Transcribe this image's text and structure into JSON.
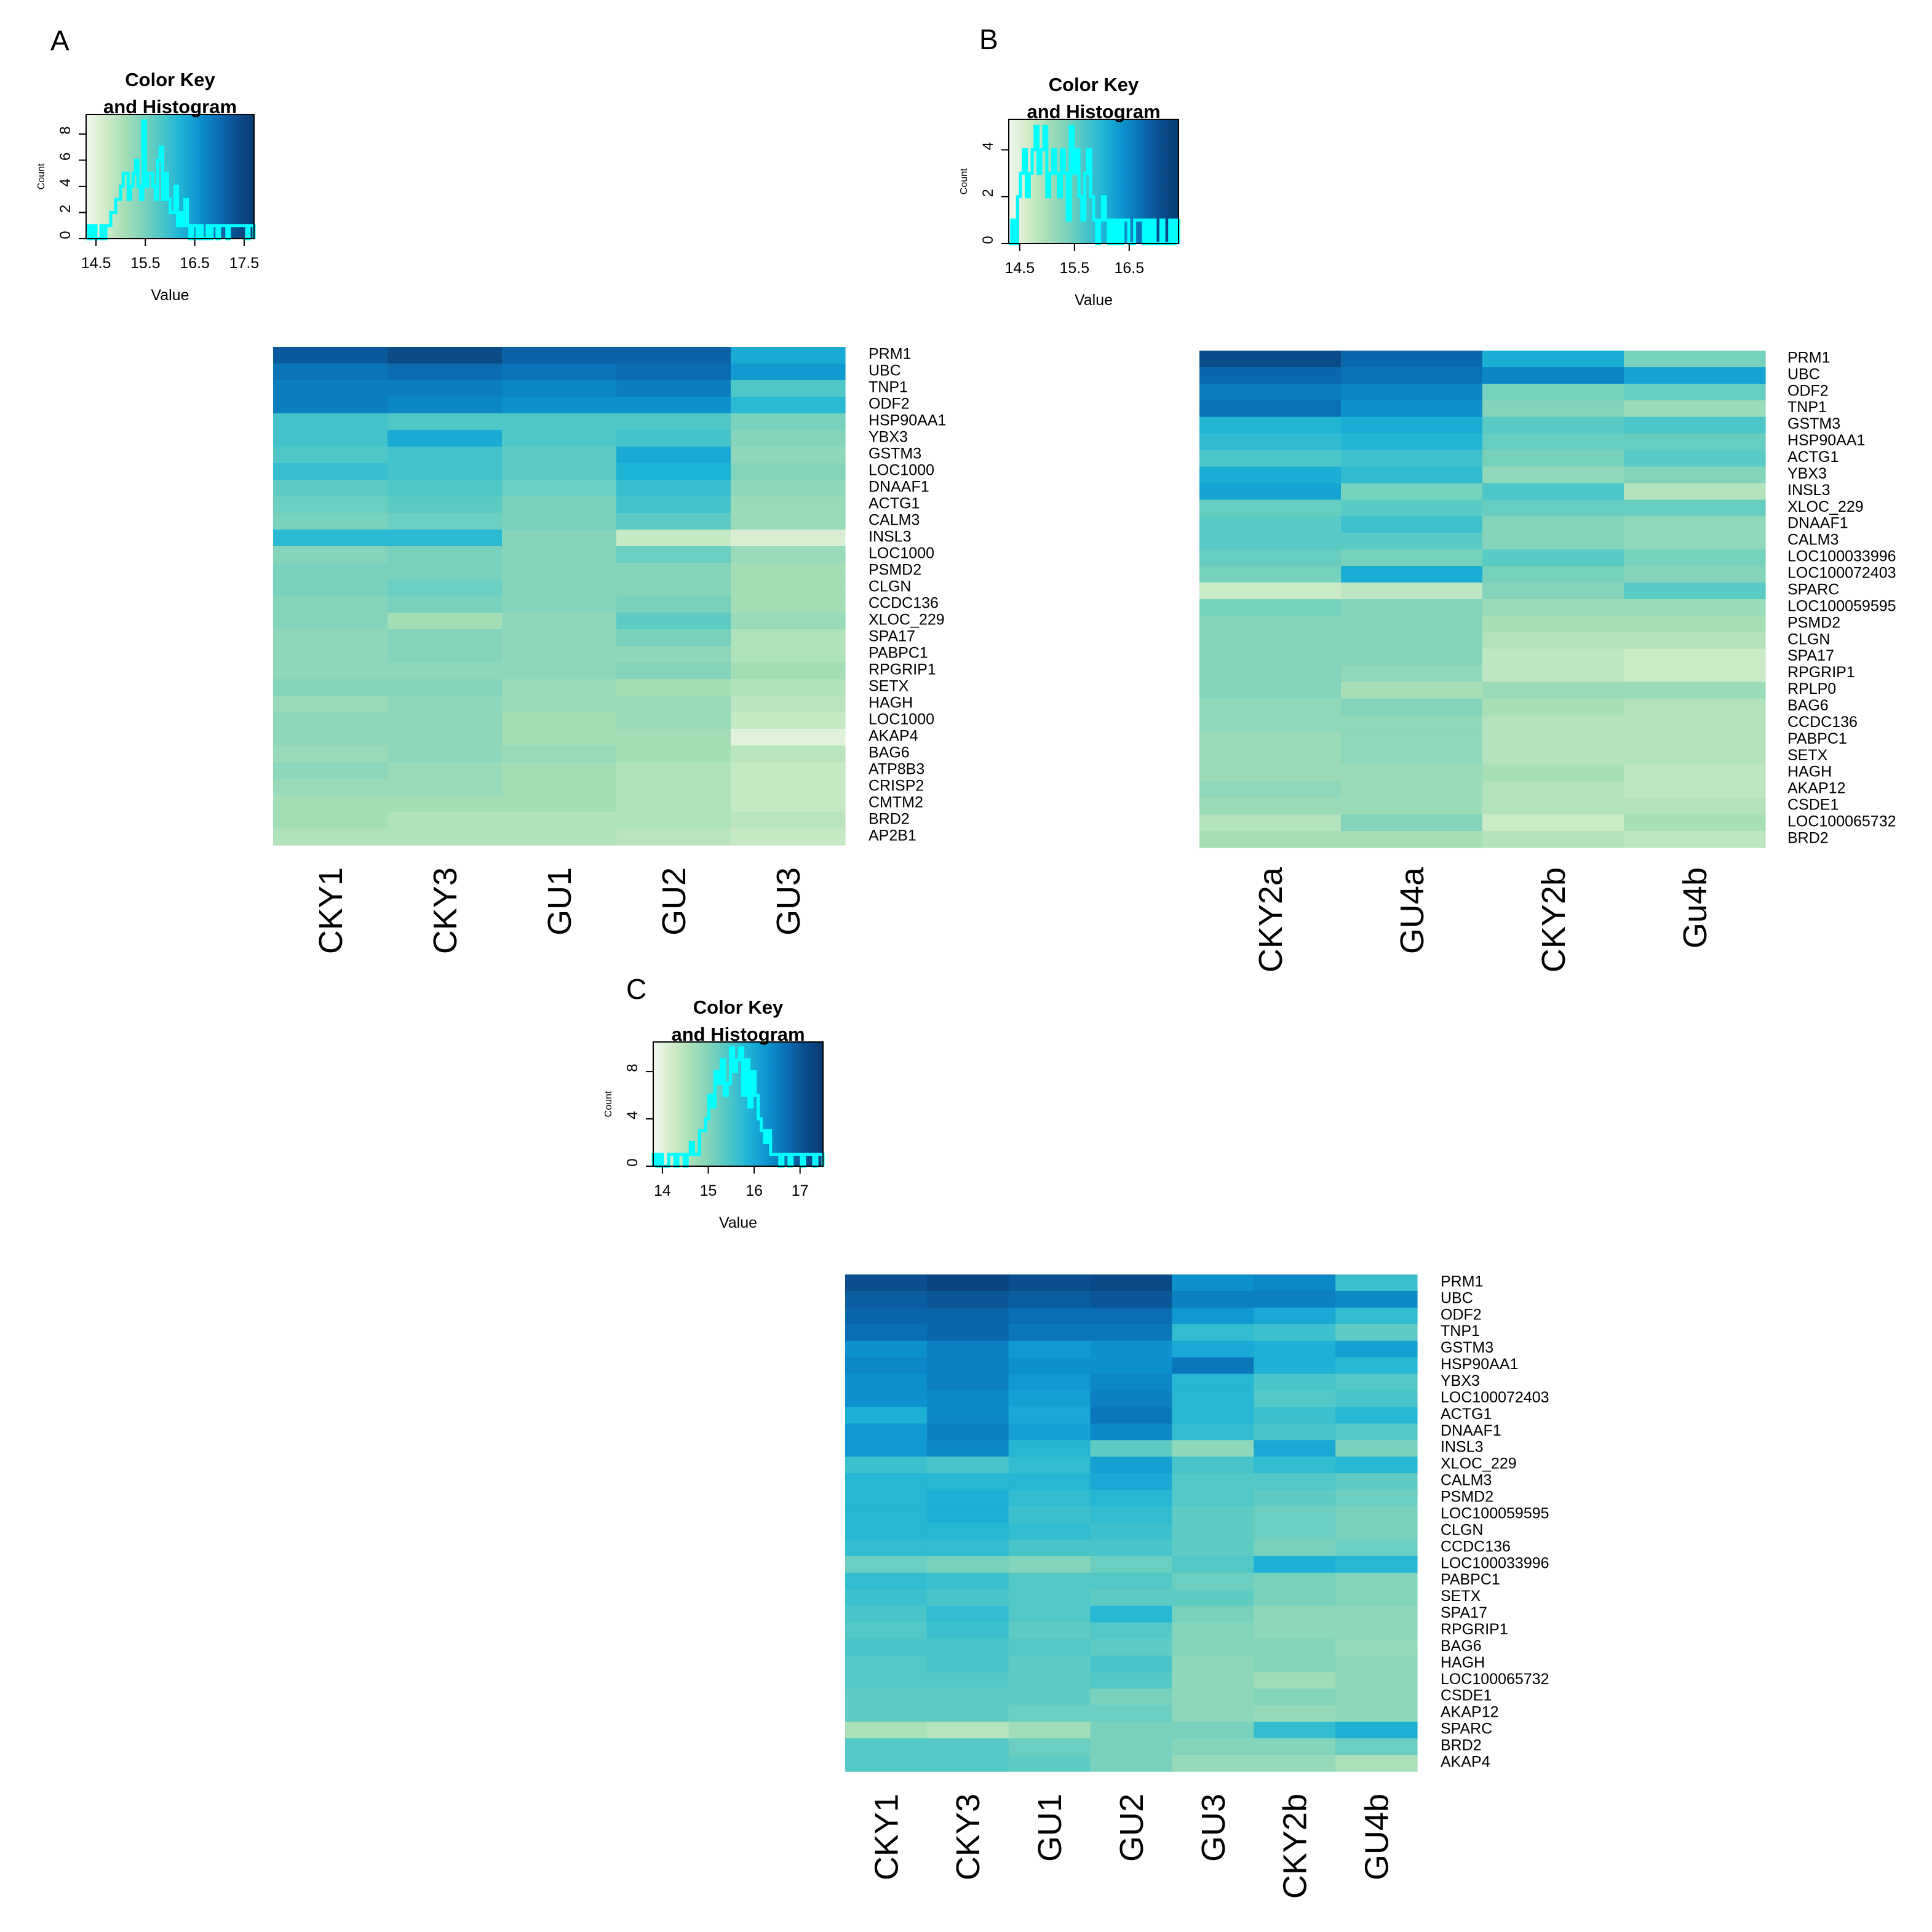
{
  "colors": {
    "scale": [
      "#f2f8ee",
      "#d2eccb",
      "#a9dfb7",
      "#7fd3bb",
      "#4fc7c7",
      "#1fb5d6",
      "#0d94cf",
      "#0b70b5",
      "#0a4f8e",
      "#083a72"
    ],
    "histogram_line": "#00ffff",
    "frame": "#000000"
  },
  "chart_data": [
    {
      "panel": "A",
      "type": "heatmap",
      "key_title_1": "Color Key",
      "key_title_2": "and Histogram",
      "key_xlabel": "Value",
      "key_ylabel": "Count",
      "key_xticks": [
        "14.5",
        "15.5",
        "16.5",
        "17.5"
      ],
      "key_yticks": [
        "0",
        "2",
        "4",
        "6",
        "8"
      ],
      "key_range": [
        14.3,
        17.7
      ],
      "key_count_max": 9.5,
      "histogram": [
        0,
        1,
        0,
        1,
        0,
        0,
        1,
        0,
        1,
        1,
        2,
        2,
        3,
        3,
        4,
        5,
        5,
        3,
        4,
        5,
        6,
        4,
        3,
        9,
        4,
        5,
        5,
        4,
        3,
        6,
        7,
        3,
        5,
        3,
        2,
        2,
        4,
        1,
        2,
        1,
        3,
        1,
        0,
        1,
        1,
        0,
        1,
        0,
        0,
        1,
        0,
        1,
        1,
        0,
        1,
        1,
        1,
        0,
        1,
        1,
        1,
        1,
        1,
        1,
        1,
        0,
        1,
        1
      ],
      "columns": [
        "CKY1",
        "CKY3",
        "GU1",
        "GU2",
        "GU3"
      ],
      "rows": [
        "PRM1",
        "UBC",
        "TNP1",
        "ODF2",
        "HSP90AA1",
        "YBX3",
        "GSTM3",
        "LOC1000",
        "DNAAF1",
        "ACTG1",
        "CALM3",
        "INSL3",
        "LOC1000",
        "PSMD2",
        "CLGN",
        "CCDC136",
        "XLOC_229",
        "SPA17",
        "PABPC1",
        "RPGRIP1",
        "SETX",
        "HAGH",
        "LOC1000",
        "AKAP4",
        "BAG6",
        "ATP8B3",
        "CRISP2",
        "CMTM2",
        "BRD2",
        "AP2B1"
      ],
      "values": [
        [
          17.2,
          17.4,
          17.1,
          17.1,
          16.3
        ],
        [
          16.9,
          17.0,
          16.9,
          17.0,
          16.5
        ],
        [
          16.8,
          16.8,
          16.7,
          16.8,
          15.8
        ],
        [
          16.8,
          16.7,
          16.6,
          16.6,
          16.1
        ],
        [
          15.9,
          15.8,
          15.8,
          15.8,
          15.5
        ],
        [
          15.9,
          16.3,
          15.8,
          15.9,
          15.4
        ],
        [
          15.8,
          15.9,
          15.7,
          16.3,
          15.3
        ],
        [
          16.0,
          15.9,
          15.7,
          16.2,
          15.4
        ],
        [
          15.7,
          15.8,
          15.6,
          16.0,
          15.3
        ],
        [
          15.6,
          15.7,
          15.5,
          15.9,
          15.2
        ],
        [
          15.5,
          15.6,
          15.5,
          15.7,
          15.2
        ],
        [
          16.1,
          16.1,
          15.4,
          14.8,
          14.6
        ],
        [
          15.4,
          15.5,
          15.4,
          15.6,
          15.2
        ],
        [
          15.5,
          15.5,
          15.4,
          15.4,
          15.1
        ],
        [
          15.5,
          15.6,
          15.4,
          15.4,
          15.1
        ],
        [
          15.4,
          15.5,
          15.4,
          15.5,
          15.1
        ],
        [
          15.4,
          15.1,
          15.3,
          15.7,
          15.2
        ],
        [
          15.3,
          15.4,
          15.3,
          15.5,
          15.0
        ],
        [
          15.3,
          15.4,
          15.3,
          15.3,
          15.0
        ],
        [
          15.3,
          15.3,
          15.3,
          15.4,
          15.1
        ],
        [
          15.4,
          15.4,
          15.2,
          15.1,
          15.0
        ],
        [
          15.2,
          15.3,
          15.2,
          15.2,
          14.9
        ],
        [
          15.3,
          15.3,
          15.1,
          15.2,
          14.8
        ],
        [
          15.3,
          15.3,
          15.1,
          15.1,
          14.5
        ],
        [
          15.2,
          15.3,
          15.2,
          15.1,
          14.9
        ],
        [
          15.3,
          15.2,
          15.1,
          15.0,
          14.8
        ],
        [
          15.2,
          15.2,
          15.1,
          15.0,
          14.8
        ],
        [
          15.1,
          15.1,
          15.1,
          15.0,
          14.8
        ],
        [
          15.1,
          15.0,
          15.0,
          15.0,
          14.9
        ],
        [
          15.0,
          15.0,
          15.0,
          14.9,
          14.8
        ]
      ]
    },
    {
      "panel": "B",
      "type": "heatmap",
      "key_title_1": "Color Key",
      "key_title_2": "and Histogram",
      "key_xlabel": "Value",
      "key_ylabel": "Count",
      "key_xticks": [
        "14.5",
        "15.5",
        "16.5"
      ],
      "key_yticks": [
        "0",
        "2",
        "4"
      ],
      "key_range": [
        14.3,
        17.4
      ],
      "key_count_max": 5.3,
      "histogram": [
        0,
        1,
        0,
        2,
        3,
        4,
        2,
        3,
        4,
        5,
        3,
        4,
        5,
        2,
        3,
        4,
        3,
        2,
        4,
        3,
        1,
        5,
        3,
        4,
        2,
        1,
        3,
        4,
        2,
        1,
        0,
        1,
        2,
        1,
        0,
        1,
        0,
        1,
        0,
        1,
        1,
        0,
        0,
        1,
        1,
        1,
        0,
        1,
        0,
        1,
        0,
        0,
        1,
        0,
        0,
        1,
        0,
        1
      ],
      "columns": [
        "CKY2a",
        "GU4a",
        "CKY2b",
        "Gu4b"
      ],
      "rows": [
        "PRM1",
        "UBC",
        "ODF2",
        "TNP1",
        "GSTM3",
        "HSP90AA1",
        "ACTG1",
        "YBX3",
        "INSL3",
        "XLOC_229",
        "DNAAF1",
        "CALM3",
        "LOC100033996",
        "LOC100072403",
        "SPARC",
        "LOC100059595",
        "PSMD2",
        "CLGN",
        "SPA17",
        "RPGRIP1",
        "RPLP0",
        "BAG6",
        "CCDC136",
        "PABPC1",
        "SETX",
        "HAGH",
        "AKAP12",
        "CSDE1",
        "LOC100065732",
        "BRD2"
      ],
      "values": [
        [
          17.1,
          16.8,
          16.1,
          15.4
        ],
        [
          16.8,
          16.7,
          16.5,
          16.2
        ],
        [
          16.6,
          16.5,
          15.4,
          15.5
        ],
        [
          16.7,
          16.4,
          15.3,
          15.1
        ],
        [
          16.0,
          16.1,
          15.6,
          15.7
        ],
        [
          15.9,
          16.0,
          15.5,
          15.5
        ],
        [
          15.7,
          15.8,
          15.4,
          15.6
        ],
        [
          16.1,
          15.9,
          15.2,
          15.3
        ],
        [
          16.2,
          15.4,
          15.7,
          14.9
        ],
        [
          15.5,
          15.6,
          15.5,
          15.5
        ],
        [
          15.6,
          15.8,
          15.3,
          15.2
        ],
        [
          15.6,
          15.6,
          15.3,
          15.2
        ],
        [
          15.5,
          15.4,
          15.6,
          15.4
        ],
        [
          15.4,
          16.1,
          15.4,
          15.3
        ],
        [
          14.7,
          14.8,
          15.3,
          15.6
        ],
        [
          15.4,
          15.3,
          15.1,
          15.1
        ],
        [
          15.3,
          15.3,
          15.0,
          15.0
        ],
        [
          15.3,
          15.3,
          14.9,
          14.9
        ],
        [
          15.3,
          15.3,
          14.8,
          14.7
        ],
        [
          15.3,
          15.2,
          14.8,
          14.7
        ],
        [
          15.3,
          15.0,
          15.1,
          15.1
        ],
        [
          15.2,
          15.3,
          15.0,
          14.9
        ],
        [
          15.2,
          15.2,
          14.9,
          14.9
        ],
        [
          15.1,
          15.2,
          14.9,
          14.9
        ],
        [
          15.1,
          15.2,
          14.9,
          14.9
        ],
        [
          15.1,
          15.1,
          15.0,
          14.8
        ],
        [
          15.2,
          15.1,
          14.9,
          14.8
        ],
        [
          15.1,
          15.1,
          14.9,
          14.9
        ],
        [
          14.9,
          15.3,
          14.7,
          15.0
        ],
        [
          15.0,
          15.0,
          14.9,
          14.8
        ]
      ]
    },
    {
      "panel": "C",
      "type": "heatmap",
      "key_title_1": "Color Key",
      "key_title_2": "and Histogram",
      "key_xlabel": "Value",
      "key_ylabel": "Count",
      "key_xticks": [
        "14",
        "15",
        "16",
        "17"
      ],
      "key_yticks": [
        "0",
        "4",
        "8"
      ],
      "key_range": [
        13.8,
        17.5
      ],
      "key_count_max": 10.5,
      "histogram": [
        1,
        0,
        1,
        0,
        0,
        1,
        1,
        0,
        1,
        1,
        0,
        1,
        2,
        1,
        1,
        3,
        3,
        4,
        6,
        5,
        8,
        7,
        9,
        6,
        7,
        10,
        8,
        9,
        10,
        6,
        9,
        5,
        8,
        6,
        4,
        3,
        2,
        3,
        1,
        1,
        1,
        0,
        1,
        1,
        0,
        1,
        1,
        1,
        0,
        1,
        1,
        1,
        0,
        1,
        1
      ],
      "columns": [
        "CKY1",
        "CKY3",
        "GU1",
        "GU2",
        "GU3",
        "CKY2b",
        "GU4b"
      ],
      "rows": [
        "PRM1",
        "UBC",
        "ODF2",
        "TNP1",
        "GSTM3",
        "HSP90AA1",
        "YBX3",
        "LOC100072403",
        "ACTG1",
        "DNAAF1",
        "INSL3",
        "XLOC_229",
        "CALM3",
        "PSMD2",
        "LOC100059595",
        "CLGN",
        "CCDC136",
        "LOC100033996",
        "PABPC1",
        "SETX",
        "SPA17",
        "RPGRIP1",
        "BAG6",
        "HAGH",
        "LOC100065732",
        "CSDE1",
        "AKAP12",
        "SPARC",
        "BRD2",
        "AKAP4"
      ],
      "values": [
        [
          17.1,
          17.3,
          17.1,
          17.2,
          16.3,
          16.4,
          15.6
        ],
        [
          16.9,
          17.0,
          16.9,
          17.0,
          16.5,
          16.5,
          16.4
        ],
        [
          16.8,
          16.8,
          16.7,
          16.7,
          16.2,
          16.0,
          15.7
        ],
        [
          16.7,
          16.8,
          16.6,
          16.6,
          15.7,
          15.6,
          15.3
        ],
        [
          16.3,
          16.5,
          16.2,
          16.3,
          16.0,
          15.9,
          16.1
        ],
        [
          16.4,
          16.5,
          16.3,
          16.3,
          16.6,
          15.9,
          15.8
        ],
        [
          16.3,
          16.5,
          16.2,
          16.4,
          15.8,
          15.5,
          15.4
        ],
        [
          16.3,
          16.4,
          16.1,
          16.5,
          15.8,
          15.4,
          15.5
        ],
        [
          15.9,
          16.4,
          16.0,
          16.6,
          15.8,
          15.6,
          15.8
        ],
        [
          16.2,
          16.5,
          16.1,
          16.4,
          15.7,
          15.5,
          15.4
        ],
        [
          16.2,
          16.4,
          15.8,
          15.3,
          14.9,
          16.0,
          15.1
        ],
        [
          15.6,
          15.5,
          15.7,
          16.1,
          15.5,
          15.7,
          15.8
        ],
        [
          15.8,
          15.8,
          15.8,
          16.0,
          15.4,
          15.4,
          15.3
        ],
        [
          15.8,
          15.9,
          15.7,
          15.8,
          15.4,
          15.3,
          15.2
        ],
        [
          15.8,
          15.9,
          15.6,
          15.7,
          15.3,
          15.2,
          15.1
        ],
        [
          15.8,
          15.8,
          15.7,
          15.6,
          15.3,
          15.2,
          15.1
        ],
        [
          15.7,
          15.7,
          15.5,
          15.5,
          15.3,
          15.1,
          15.2
        ],
        [
          15.2,
          15.1,
          15.0,
          15.2,
          15.4,
          15.9,
          15.8
        ],
        [
          15.7,
          15.6,
          15.4,
          15.4,
          15.2,
          15.1,
          15.0
        ],
        [
          15.6,
          15.5,
          15.4,
          15.3,
          15.3,
          15.1,
          15.0
        ],
        [
          15.5,
          15.7,
          15.4,
          15.8,
          15.1,
          14.9,
          14.9
        ],
        [
          15.4,
          15.6,
          15.3,
          15.4,
          15.0,
          14.9,
          14.9
        ],
        [
          15.5,
          15.5,
          15.4,
          15.3,
          15.0,
          15.0,
          14.8
        ],
        [
          15.4,
          15.5,
          15.3,
          15.5,
          14.9,
          15.0,
          14.9
        ],
        [
          15.4,
          15.4,
          15.3,
          15.4,
          14.9,
          14.7,
          14.9
        ],
        [
          15.3,
          15.3,
          15.3,
          15.1,
          14.9,
          15.0,
          14.9
        ],
        [
          15.3,
          15.3,
          15.2,
          15.2,
          14.9,
          14.8,
          14.9
        ],
        [
          14.6,
          14.5,
          14.7,
          15.1,
          15.1,
          15.7,
          15.9
        ],
        [
          15.4,
          15.4,
          15.2,
          15.1,
          15.0,
          15.0,
          15.2
        ],
        [
          15.4,
          15.4,
          15.3,
          15.1,
          14.8,
          14.8,
          14.6
        ]
      ]
    }
  ]
}
